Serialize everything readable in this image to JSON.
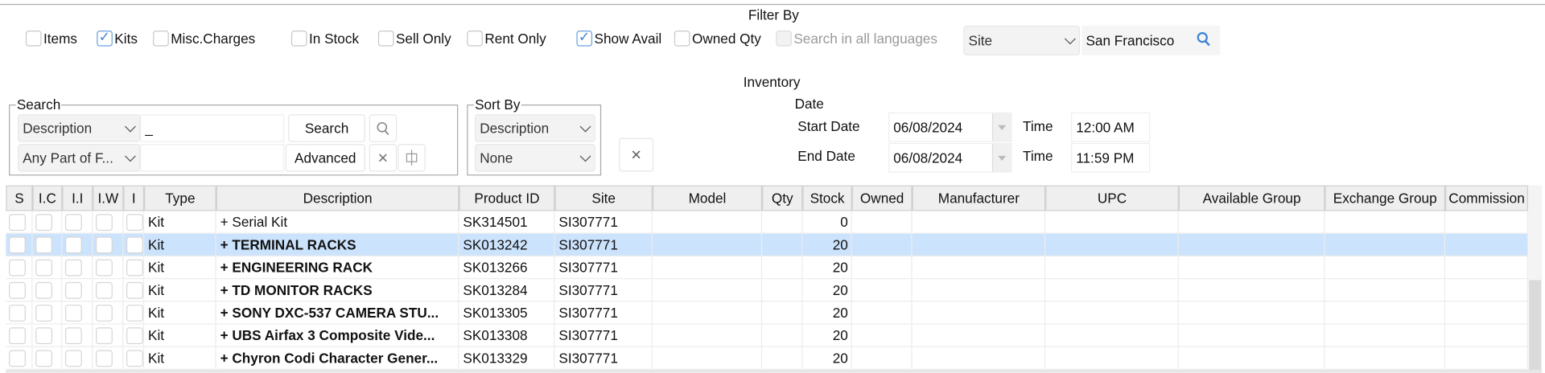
{
  "filter": {
    "title": "Filter By",
    "checkboxes": [
      {
        "label": "Items",
        "checked": false
      },
      {
        "label": "Kits",
        "checked": true
      },
      {
        "label": "Misc.Charges",
        "checked": false
      },
      {
        "label": "In Stock",
        "checked": false
      },
      {
        "label": "Sell Only",
        "checked": false
      },
      {
        "label": "Rent Only",
        "checked": false
      },
      {
        "label": "Show Avail",
        "checked": true
      },
      {
        "label": "Owned Qty",
        "checked": false
      },
      {
        "label": "Search in all languages",
        "checked": false,
        "disabled": true
      }
    ],
    "site_select": "Site",
    "site_value": "San Francisco",
    "site_search_icon": "search-icon"
  },
  "inventory_title": "Inventory",
  "search": {
    "legend": "Search",
    "field_select": "Description",
    "query": "_",
    "match_select": "Any Part of F...",
    "query2": "",
    "search_button": "Search",
    "advanced_button": "Advanced"
  },
  "sort": {
    "legend": "Sort By",
    "primary": "Description",
    "secondary": "None"
  },
  "date": {
    "title": "Date",
    "start_label": "Start Date",
    "start_value": "06/08/2024",
    "end_label": "End Date",
    "end_value": "06/08/2024",
    "time_label": "Time",
    "start_time": "12:00 AM",
    "end_time": "11:59 PM"
  },
  "table": {
    "columns": [
      "S",
      "I.C",
      "I.I",
      "I.W",
      "I",
      "Type",
      "Description",
      "Product ID",
      "Site",
      "Model",
      "Qty",
      "Stock",
      "Owned",
      "Manufacturer",
      "UPC",
      "Available Group",
      "Exchange Group",
      "Commission"
    ],
    "rows": [
      {
        "type": "Kit",
        "description": "+ Serial Kit",
        "product_id": "SK314501",
        "site": "SI307771",
        "stock": "0",
        "bold": false,
        "selected": false
      },
      {
        "type": "Kit",
        "description": "+ TERMINAL RACKS",
        "product_id": "SK013242",
        "site": "SI307771",
        "stock": "20",
        "bold": true,
        "selected": true
      },
      {
        "type": "Kit",
        "description": "+ ENGINEERING RACK",
        "product_id": "SK013266",
        "site": "SI307771",
        "stock": "20",
        "bold": true,
        "selected": false
      },
      {
        "type": "Kit",
        "description": "+ TD MONITOR RACKS",
        "product_id": "SK013284",
        "site": "SI307771",
        "stock": "20",
        "bold": true,
        "selected": false
      },
      {
        "type": "Kit",
        "description": "+ SONY DXC-537 CAMERA STU...",
        "product_id": "SK013305",
        "site": "SI307771",
        "stock": "20",
        "bold": true,
        "selected": false
      },
      {
        "type": "Kit",
        "description": "+ UBS Airfax 3 Composite Vide...",
        "product_id": "SK013308",
        "site": "SI307771",
        "stock": "20",
        "bold": true,
        "selected": false
      },
      {
        "type": "Kit",
        "description": "+ Chyron Codi Character Gener...",
        "product_id": "SK013329",
        "site": "SI307771",
        "stock": "20",
        "bold": true,
        "selected": false
      }
    ]
  },
  "colors": {
    "selected_row": "#cce3fd",
    "accent": "#3b82d6"
  }
}
